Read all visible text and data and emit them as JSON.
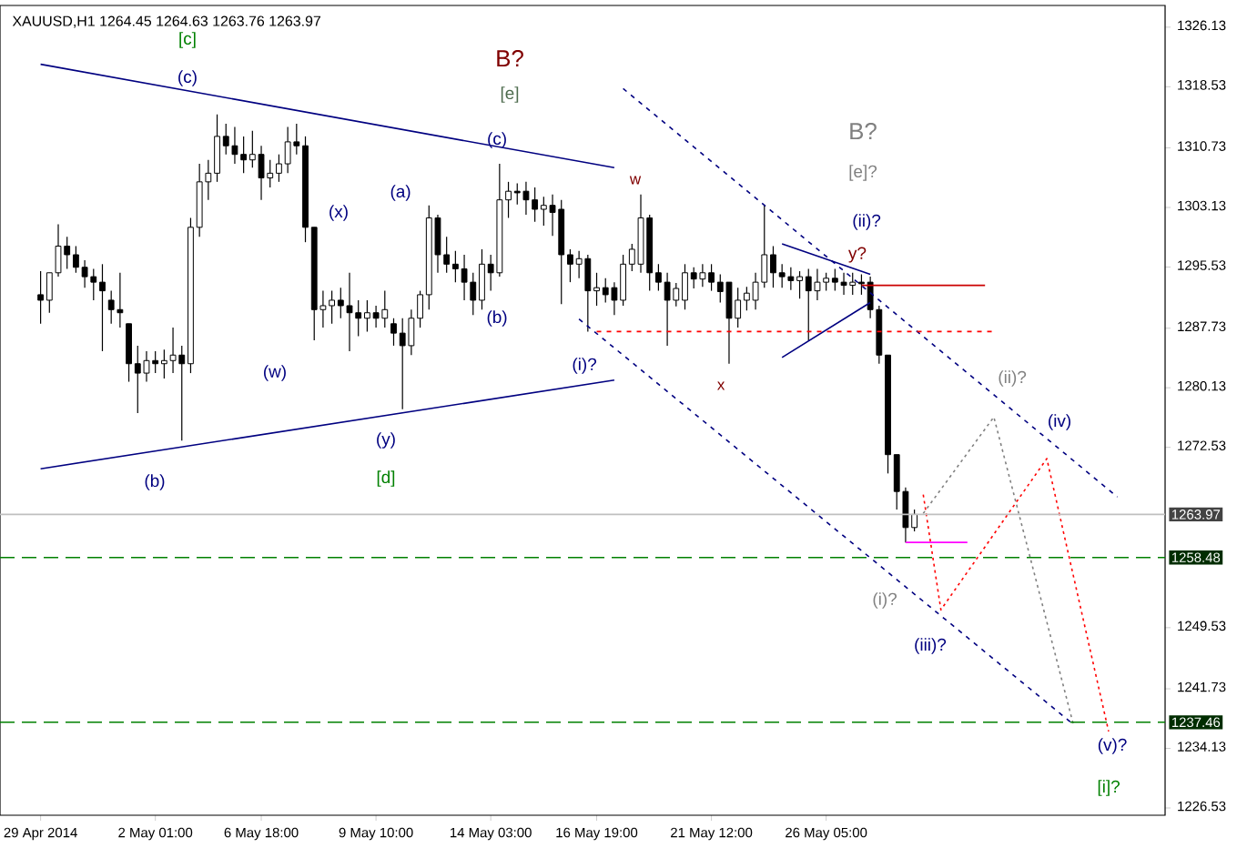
{
  "chart_data": {
    "type": "candlestick",
    "title": "XAUUSD,H1  1264.45 1264.63 1263.76 1263.97",
    "color": "#000000",
    "categories": [
      "29 Apr 2014",
      null,
      null,
      null,
      null,
      null,
      null,
      null,
      null,
      null,
      null,
      null,
      null,
      "2 May 01:00",
      null,
      null,
      null,
      null,
      null,
      null,
      null,
      null,
      null,
      null,
      null,
      "6 May 18:00",
      null,
      null,
      null,
      null,
      null,
      null,
      null,
      null,
      null,
      null,
      null,
      null,
      "9 May 10:00",
      null,
      null,
      null,
      null,
      null,
      null,
      null,
      null,
      null,
      null,
      null,
      null,
      "14 May 03:00",
      null,
      null,
      null,
      null,
      null,
      null,
      null,
      null,
      null,
      null,
      null,
      "16 May 19:00",
      null,
      null,
      null,
      null,
      null,
      null,
      null,
      null,
      null,
      null,
      null,
      null,
      "21 May 12:00",
      null,
      null,
      null,
      null,
      null,
      null,
      null,
      null,
      null,
      null,
      null,
      null,
      "26 May 05:00",
      null,
      null,
      null,
      null,
      null,
      null,
      null,
      null,
      null,
      null,
      null,
      null,
      null,
      null,
      null,
      null,
      null,
      null,
      null,
      null,
      null,
      null,
      null,
      null,
      null,
      null,
      null,
      null,
      null,
      null,
      null,
      null,
      null
    ],
    "ohlc": [
      [
        1292.0,
        1295.0,
        1288.3,
        1291.3
      ],
      [
        1291.3,
        1294.8,
        1289.7,
        1294.8
      ],
      [
        1294.8,
        1301.0,
        1294.3,
        1298.2
      ],
      [
        1298.2,
        1299.4,
        1295.3,
        1297.1
      ],
      [
        1297.1,
        1298.2,
        1294.8,
        1295.5
      ],
      [
        1295.5,
        1296.4,
        1292.9,
        1294.3
      ],
      [
        1294.3,
        1295.3,
        1291.3,
        1293.6
      ],
      [
        1293.6,
        1295.9,
        1284.8,
        1292.5
      ],
      [
        1291.3,
        1292.5,
        1288.3,
        1290.1
      ],
      [
        1290.1,
        1294.8,
        1287.8,
        1289.7
      ],
      [
        1288.3,
        1288.3,
        1280.9,
        1283.2
      ],
      [
        1283.2,
        1285.5,
        1276.9,
        1282.0
      ],
      [
        1282.0,
        1284.8,
        1280.9,
        1283.6
      ],
      [
        1283.6,
        1284.8,
        1282.0,
        1283.2
      ],
      [
        1283.2,
        1285.0,
        1281.3,
        1283.6
      ],
      [
        1283.6,
        1287.8,
        1282.0,
        1284.3
      ],
      [
        1284.3,
        1285.5,
        1273.4,
        1283.2
      ],
      [
        1283.2,
        1301.8,
        1282.0,
        1300.6
      ],
      [
        1300.6,
        1308.7,
        1299.4,
        1306.4
      ],
      [
        1306.4,
        1309.2,
        1304.1,
        1307.5
      ],
      [
        1307.5,
        1315.0,
        1306.4,
        1312.2
      ],
      [
        1312.2,
        1313.8,
        1309.9,
        1311.0
      ],
      [
        1311.0,
        1313.4,
        1308.7,
        1309.9
      ],
      [
        1309.9,
        1312.2,
        1307.5,
        1309.2
      ],
      [
        1309.2,
        1312.9,
        1308.2,
        1309.9
      ],
      [
        1309.9,
        1311.0,
        1304.1,
        1306.9
      ],
      [
        1306.9,
        1309.2,
        1305.7,
        1307.5
      ],
      [
        1307.5,
        1309.9,
        1306.4,
        1308.7
      ],
      [
        1308.7,
        1313.4,
        1307.5,
        1311.5
      ],
      [
        1311.5,
        1313.8,
        1309.9,
        1311.0
      ],
      [
        1311.0,
        1312.2,
        1298.7,
        1300.6
      ],
      [
        1300.6,
        1300.6,
        1286.2,
        1290.1
      ],
      [
        1290.1,
        1292.5,
        1287.8,
        1290.6
      ],
      [
        1290.6,
        1292.5,
        1288.3,
        1291.3
      ],
      [
        1291.3,
        1292.9,
        1289.0,
        1290.6
      ],
      [
        1290.6,
        1294.8,
        1284.8,
        1289.7
      ],
      [
        1289.7,
        1291.3,
        1286.7,
        1289.0
      ],
      [
        1289.0,
        1291.3,
        1287.3,
        1289.7
      ],
      [
        1289.7,
        1290.6,
        1287.8,
        1289.0
      ],
      [
        1289.0,
        1292.5,
        1287.8,
        1290.1
      ],
      [
        1288.3,
        1289.0,
        1285.5,
        1287.1
      ],
      [
        1287.1,
        1289.0,
        1277.4,
        1285.5
      ],
      [
        1285.5,
        1290.1,
        1284.3,
        1289.0
      ],
      [
        1289.0,
        1292.5,
        1287.8,
        1292.0
      ],
      [
        1292.0,
        1303.4,
        1290.1,
        1301.8
      ],
      [
        1301.8,
        1302.2,
        1294.8,
        1297.1
      ],
      [
        1297.1,
        1299.4,
        1294.8,
        1295.9
      ],
      [
        1295.9,
        1297.6,
        1293.6,
        1295.3
      ],
      [
        1295.3,
        1297.1,
        1291.3,
        1293.6
      ],
      [
        1293.6,
        1294.8,
        1289.4,
        1291.3
      ],
      [
        1291.3,
        1297.8,
        1290.1,
        1295.9
      ],
      [
        1295.9,
        1297.1,
        1292.5,
        1294.8
      ],
      [
        1294.8,
        1308.7,
        1294.3,
        1304.1
      ],
      [
        1304.1,
        1306.4,
        1301.8,
        1305.2
      ],
      [
        1305.2,
        1306.2,
        1303.5,
        1305.0
      ],
      [
        1305.2,
        1306.4,
        1302.2,
        1304.1
      ],
      [
        1304.1,
        1305.7,
        1301.3,
        1302.9
      ],
      [
        1302.9,
        1304.5,
        1300.8,
        1303.4
      ],
      [
        1303.4,
        1304.8,
        1299.5,
        1302.5
      ],
      [
        1302.9,
        1304.1,
        1290.8,
        1297.1
      ],
      [
        1297.1,
        1297.8,
        1293.6,
        1295.9
      ],
      [
        1295.9,
        1297.6,
        1294.1,
        1296.6
      ],
      [
        1296.6,
        1297.1,
        1287.3,
        1292.5
      ],
      [
        1292.5,
        1294.8,
        1290.6,
        1292.9
      ],
      [
        1292.9,
        1294.1,
        1291.0,
        1292.0
      ],
      [
        1292.9,
        1293.6,
        1289.4,
        1291.3
      ],
      [
        1291.3,
        1297.1,
        1290.6,
        1295.9
      ],
      [
        1295.9,
        1298.5,
        1295.0,
        1297.8
      ],
      [
        1295.9,
        1304.8,
        1294.8,
        1301.8
      ],
      [
        1301.8,
        1302.2,
        1292.5,
        1294.8
      ],
      [
        1294.8,
        1295.9,
        1292.5,
        1293.6
      ],
      [
        1293.6,
        1294.8,
        1285.5,
        1291.3
      ],
      [
        1291.3,
        1293.5,
        1290.5,
        1292.8
      ],
      [
        1291.3,
        1295.9,
        1290.1,
        1294.8
      ],
      [
        1294.8,
        1295.5,
        1292.8,
        1294.0
      ],
      [
        1294.0,
        1295.9,
        1293.0,
        1294.8
      ],
      [
        1294.8,
        1295.9,
        1292.5,
        1293.6
      ],
      [
        1293.6,
        1294.6,
        1291.0,
        1292.4
      ],
      [
        1293.6,
        1293.6,
        1283.2,
        1289.0
      ],
      [
        1289.0,
        1292.9,
        1287.8,
        1291.3
      ],
      [
        1291.3,
        1293.0,
        1290.0,
        1292.2
      ],
      [
        1291.3,
        1294.8,
        1290.1,
        1293.6
      ],
      [
        1293.6,
        1303.4,
        1292.9,
        1297.1
      ],
      [
        1297.1,
        1298.2,
        1292.9,
        1294.8
      ],
      [
        1294.8,
        1295.9,
        1292.9,
        1294.3
      ],
      [
        1294.3,
        1295.5,
        1292.6,
        1293.8
      ],
      [
        1293.8,
        1295.0,
        1291.5,
        1294.3
      ],
      [
        1294.3,
        1295.3,
        1286.2,
        1292.5
      ],
      [
        1292.5,
        1295.3,
        1291.3,
        1293.6
      ],
      [
        1293.6,
        1294.8,
        1292.5,
        1294.1
      ],
      [
        1294.1,
        1295.3,
        1292.5,
        1293.6
      ],
      [
        1293.6,
        1294.8,
        1292.0,
        1293.2
      ],
      [
        1293.2,
        1294.8,
        1292.0,
        1293.6
      ],
      [
        1293.6,
        1294.6,
        1292.0,
        1293.4
      ],
      [
        1293.6,
        1294.3,
        1289.0,
        1290.1
      ],
      [
        1290.1,
        1290.6,
        1283.2,
        1284.3
      ],
      [
        1284.3,
        1284.3,
        1269.2,
        1271.6
      ],
      [
        1271.6,
        1271.6,
        1264.6,
        1266.9
      ],
      [
        1266.9,
        1267.4,
        1260.4,
        1262.3
      ],
      [
        1262.3,
        1264.6,
        1261.8,
        1263.97
      ],
      null,
      null,
      null,
      null,
      null,
      null,
      null,
      null,
      null,
      null,
      null,
      null,
      null,
      null,
      null,
      null,
      null,
      null,
      null,
      null,
      null,
      null,
      null
    ],
    "series": [
      {
        "type": "line",
        "color": "#000080",
        "line_style": "solid",
        "values": [
          1321.4,
          null,
          null,
          null,
          null,
          null,
          null,
          null,
          null,
          null,
          null,
          null,
          null,
          null,
          null,
          null,
          null,
          null,
          null,
          null,
          null,
          null,
          null,
          null,
          null,
          null,
          null,
          null,
          null,
          null,
          null,
          null,
          null,
          null,
          null,
          null,
          null,
          null,
          null,
          null,
          null,
          null,
          null,
          null,
          null,
          null,
          null,
          null,
          null,
          null,
          null,
          null,
          null,
          null,
          null,
          null,
          null,
          null,
          null,
          null,
          null,
          null,
          null,
          null,
          null,
          1308.2,
          null,
          null,
          null,
          null,
          null,
          null,
          null,
          null,
          null,
          null,
          null,
          null,
          null,
          null,
          null,
          null,
          null,
          null,
          null,
          null,
          null,
          null,
          null,
          null,
          null,
          null,
          null,
          null,
          null,
          null,
          null,
          null,
          null,
          null,
          null,
          null,
          null,
          null,
          null,
          null,
          null,
          null,
          null,
          null,
          null,
          null,
          null,
          null,
          null,
          null,
          null,
          null,
          null,
          null,
          null,
          null,
          null
        ]
      },
      {
        "type": "line",
        "color": "#000080",
        "line_style": "solid",
        "values": [
          1269.8,
          null,
          null,
          null,
          null,
          null,
          null,
          null,
          null,
          null,
          null,
          null,
          null,
          null,
          null,
          null,
          null,
          null,
          null,
          null,
          null,
          null,
          null,
          null,
          null,
          null,
          null,
          null,
          null,
          null,
          null,
          null,
          null,
          null,
          null,
          null,
          null,
          null,
          null,
          null,
          null,
          null,
          null,
          null,
          null,
          null,
          null,
          null,
          null,
          null,
          null,
          null,
          null,
          null,
          null,
          null,
          null,
          null,
          null,
          null,
          null,
          null,
          null,
          null,
          null,
          1281.1,
          null,
          null,
          null,
          null,
          null,
          null,
          null,
          null,
          null,
          null,
          null,
          null,
          null,
          null,
          null,
          null,
          null,
          null,
          null,
          null,
          null,
          null,
          null,
          null,
          null,
          null,
          null,
          null,
          null,
          null,
          null,
          null,
          null,
          null,
          null,
          null,
          null,
          null,
          null,
          null,
          null,
          null,
          null,
          null,
          null,
          null,
          null,
          null,
          null,
          null,
          null,
          null,
          null,
          null,
          null,
          null,
          null
        ]
      },
      {
        "type": "line",
        "color": "#000080",
        "line_style": "solid",
        "values": [
          null,
          null,
          null,
          null,
          null,
          null,
          null,
          null,
          null,
          null,
          null,
          null,
          null,
          null,
          null,
          null,
          null,
          null,
          null,
          null,
          null,
          null,
          null,
          null,
          null,
          null,
          null,
          null,
          null,
          null,
          null,
          null,
          null,
          null,
          null,
          null,
          null,
          null,
          null,
          null,
          null,
          null,
          null,
          null,
          null,
          null,
          null,
          null,
          null,
          null,
          null,
          null,
          null,
          null,
          null,
          null,
          null,
          null,
          null,
          null,
          null,
          null,
          null,
          null,
          null,
          null,
          null,
          null,
          null,
          null,
          null,
          null,
          null,
          null,
          null,
          null,
          null,
          null,
          null,
          null,
          null,
          null,
          null,
          null,
          1298.5,
          null,
          null,
          null,
          null,
          null,
          null,
          null,
          null,
          null,
          1294.6,
          null,
          null,
          null,
          null,
          null,
          null,
          null,
          null,
          null,
          null,
          null,
          null,
          null,
          null,
          null,
          null,
          null,
          null,
          null,
          null,
          null,
          null,
          null,
          null,
          null,
          null,
          null,
          null
        ]
      },
      {
        "type": "line",
        "color": "#000080",
        "line_style": "solid",
        "values": [
          null,
          null,
          null,
          null,
          null,
          null,
          null,
          null,
          null,
          null,
          null,
          null,
          null,
          null,
          null,
          null,
          null,
          null,
          null,
          null,
          null,
          null,
          null,
          null,
          null,
          null,
          null,
          null,
          null,
          null,
          null,
          null,
          null,
          null,
          null,
          null,
          null,
          null,
          null,
          null,
          null,
          null,
          null,
          null,
          null,
          null,
          null,
          null,
          null,
          null,
          null,
          null,
          null,
          null,
          null,
          null,
          null,
          null,
          null,
          null,
          null,
          null,
          null,
          null,
          null,
          null,
          null,
          null,
          null,
          null,
          null,
          null,
          null,
          null,
          null,
          null,
          null,
          null,
          null,
          null,
          null,
          null,
          null,
          null,
          1284.0,
          null,
          null,
          null,
          null,
          null,
          null,
          null,
          null,
          null,
          1291.0,
          null,
          null,
          null,
          null,
          null,
          null,
          null,
          null,
          null,
          null,
          null,
          null,
          null,
          null,
          null,
          null,
          null,
          null,
          null,
          null,
          null,
          null,
          null,
          null,
          null,
          null,
          null,
          null
        ]
      },
      {
        "type": "line",
        "color": "#cc0000",
        "line_style": "solid",
        "values": [
          null,
          null,
          null,
          null,
          null,
          null,
          null,
          null,
          null,
          null,
          null,
          null,
          null,
          null,
          null,
          null,
          null,
          null,
          null,
          null,
          null,
          null,
          null,
          null,
          null,
          null,
          null,
          null,
          null,
          null,
          null,
          null,
          null,
          null,
          null,
          null,
          null,
          null,
          null,
          null,
          null,
          null,
          null,
          null,
          null,
          null,
          null,
          null,
          null,
          null,
          null,
          null,
          null,
          null,
          null,
          null,
          null,
          null,
          null,
          null,
          null,
          null,
          null,
          null,
          null,
          null,
          null,
          null,
          null,
          null,
          null,
          null,
          null,
          null,
          null,
          null,
          null,
          null,
          null,
          null,
          null,
          null,
          null,
          null,
          null,
          null,
          null,
          null,
          null,
          null,
          null,
          null,
          null,
          1293.2,
          null,
          null,
          null,
          null,
          null,
          null,
          null,
          null,
          null,
          null,
          null,
          null,
          null,
          1293.2,
          null,
          null,
          null,
          null,
          null,
          null,
          null,
          null,
          null,
          null,
          null,
          null,
          null,
          null,
          null
        ]
      },
      {
        "type": "line",
        "color": "#000080",
        "line_style": "dashed",
        "values": [
          null,
          null,
          null,
          null,
          null,
          null,
          null,
          null,
          null,
          null,
          null,
          null,
          null,
          null,
          null,
          null,
          null,
          null,
          null,
          null,
          null,
          null,
          null,
          null,
          null,
          null,
          null,
          null,
          null,
          null,
          null,
          null,
          null,
          null,
          null,
          null,
          null,
          null,
          null,
          null,
          null,
          null,
          null,
          null,
          null,
          null,
          null,
          null,
          null,
          null,
          null,
          null,
          null,
          null,
          null,
          null,
          null,
          null,
          null,
          null,
          null,
          null,
          null,
          null,
          null,
          null,
          1318.3,
          null,
          null,
          null,
          null,
          null,
          null,
          null,
          null,
          null,
          null,
          null,
          null,
          null,
          null,
          null,
          null,
          null,
          null,
          null,
          null,
          null,
          null,
          null,
          null,
          null,
          null,
          null,
          null,
          null,
          null,
          null,
          null,
          null,
          null,
          null,
          null,
          null,
          null,
          null,
          null,
          null,
          null,
          null,
          null,
          null,
          null,
          null,
          null,
          null,
          null,
          null,
          null,
          null,
          null,
          null,
          1266.2
        ]
      },
      {
        "type": "line",
        "color": "#000080",
        "line_style": "dashed",
        "values": [
          null,
          null,
          null,
          null,
          null,
          null,
          null,
          null,
          null,
          null,
          null,
          null,
          null,
          null,
          null,
          null,
          null,
          null,
          null,
          null,
          null,
          null,
          null,
          null,
          null,
          null,
          null,
          null,
          null,
          null,
          null,
          null,
          null,
          null,
          null,
          null,
          null,
          null,
          null,
          null,
          null,
          null,
          null,
          null,
          null,
          null,
          null,
          null,
          null,
          null,
          null,
          null,
          null,
          null,
          null,
          null,
          null,
          null,
          null,
          null,
          null,
          1288.9,
          null,
          null,
          null,
          null,
          null,
          null,
          null,
          null,
          null,
          null,
          null,
          null,
          null,
          null,
          null,
          null,
          null,
          null,
          null,
          null,
          null,
          null,
          null,
          null,
          null,
          null,
          null,
          null,
          null,
          null,
          null,
          null,
          null,
          null,
          null,
          null,
          null,
          null,
          null,
          null,
          null,
          null,
          null,
          null,
          null,
          null,
          null,
          null,
          null,
          null,
          null,
          null,
          null,
          null,
          null,
          1237.2,
          null,
          null,
          null,
          null,
          null
        ]
      },
      {
        "type": "line",
        "color": "#ff0000",
        "line_style": "dashed",
        "values": [
          null,
          null,
          null,
          null,
          null,
          null,
          null,
          null,
          null,
          null,
          null,
          null,
          null,
          null,
          null,
          null,
          null,
          null,
          null,
          null,
          null,
          null,
          null,
          null,
          null,
          null,
          null,
          null,
          null,
          null,
          null,
          null,
          null,
          null,
          null,
          null,
          null,
          null,
          null,
          null,
          null,
          null,
          null,
          null,
          null,
          null,
          null,
          null,
          null,
          null,
          null,
          null,
          null,
          null,
          null,
          null,
          null,
          null,
          null,
          null,
          null,
          null,
          null,
          1287.3,
          null,
          null,
          null,
          null,
          null,
          null,
          null,
          null,
          null,
          null,
          null,
          null,
          null,
          null,
          null,
          null,
          null,
          null,
          null,
          null,
          null,
          null,
          null,
          null,
          null,
          null,
          null,
          null,
          null,
          null,
          null,
          null,
          null,
          null,
          null,
          null,
          null,
          null,
          null,
          null,
          null,
          null,
          null,
          null,
          1287.3,
          null,
          null,
          null,
          null,
          null,
          null,
          null,
          null,
          null,
          null,
          null,
          null,
          null,
          null
        ]
      },
      {
        "type": "line",
        "color": "#ff00ff",
        "line_style": "solid",
        "values": [
          null,
          null,
          null,
          null,
          null,
          null,
          null,
          null,
          null,
          null,
          null,
          null,
          null,
          null,
          null,
          null,
          null,
          null,
          null,
          null,
          null,
          null,
          null,
          null,
          null,
          null,
          null,
          null,
          null,
          null,
          null,
          null,
          null,
          null,
          null,
          null,
          null,
          null,
          null,
          null,
          null,
          null,
          null,
          null,
          null,
          null,
          null,
          null,
          null,
          null,
          null,
          null,
          null,
          null,
          null,
          null,
          null,
          null,
          null,
          null,
          null,
          null,
          null,
          null,
          null,
          null,
          null,
          null,
          null,
          null,
          null,
          null,
          null,
          null,
          null,
          null,
          null,
          null,
          null,
          null,
          null,
          null,
          null,
          null,
          null,
          null,
          null,
          null,
          null,
          null,
          null,
          null,
          null,
          null,
          null,
          null,
          null,
          null,
          1260.4,
          null,
          null,
          null,
          null,
          null,
          null,
          1260.4,
          null,
          null,
          null,
          null,
          null,
          null,
          null,
          null,
          null,
          null,
          null,
          null,
          null,
          null,
          null,
          null,
          null
        ]
      },
      {
        "type": "line",
        "color": "#808080",
        "line_style": "dotted",
        "values": [
          null,
          null,
          null,
          null,
          null,
          null,
          null,
          null,
          null,
          null,
          null,
          null,
          null,
          null,
          null,
          null,
          null,
          null,
          null,
          null,
          null,
          null,
          null,
          null,
          null,
          null,
          null,
          null,
          null,
          null,
          null,
          null,
          null,
          null,
          null,
          null,
          null,
          null,
          null,
          null,
          null,
          null,
          null,
          null,
          null,
          null,
          null,
          null,
          null,
          null,
          null,
          null,
          null,
          null,
          null,
          null,
          null,
          null,
          null,
          null,
          null,
          null,
          null,
          null,
          null,
          null,
          null,
          null,
          null,
          null,
          null,
          null,
          null,
          null,
          null,
          null,
          null,
          null,
          null,
          null,
          null,
          null,
          null,
          null,
          null,
          null,
          null,
          null,
          null,
          null,
          null,
          null,
          null,
          null,
          null,
          null,
          null,
          null,
          null,
          null,
          1264.1,
          null,
          null,
          null,
          null,
          null,
          null,
          null,
          1276.4,
          null,
          null,
          null,
          null,
          null,
          null,
          null,
          null,
          1237.2,
          null,
          null,
          null,
          null,
          null
        ]
      },
      {
        "type": "line",
        "color": "#ff0000",
        "line_style": "dotted",
        "values": [
          null,
          null,
          null,
          null,
          null,
          null,
          null,
          null,
          null,
          null,
          null,
          null,
          null,
          null,
          null,
          null,
          null,
          null,
          null,
          null,
          null,
          null,
          null,
          null,
          null,
          null,
          null,
          null,
          null,
          null,
          null,
          null,
          null,
          null,
          null,
          null,
          null,
          null,
          null,
          null,
          null,
          null,
          null,
          null,
          null,
          null,
          null,
          null,
          null,
          null,
          null,
          null,
          null,
          null,
          null,
          null,
          null,
          null,
          null,
          null,
          null,
          null,
          null,
          null,
          null,
          null,
          null,
          null,
          null,
          null,
          null,
          null,
          null,
          null,
          null,
          null,
          null,
          null,
          null,
          null,
          null,
          null,
          null,
          null,
          null,
          null,
          null,
          null,
          null,
          null,
          null,
          null,
          null,
          null,
          null,
          null,
          null,
          null,
          null,
          null,
          1266.5,
          null,
          1251.8,
          null,
          null,
          null,
          null,
          null,
          null,
          null,
          null,
          null,
          null,
          null,
          1271.1,
          null,
          null,
          null,
          null,
          null,
          null,
          1236.3,
          null
        ]
      }
    ],
    "ref_lines": [
      {
        "axis": "y",
        "value": 1263.97,
        "label": "1263.97",
        "color": "#c0c0c0",
        "line_style": "solid"
      },
      {
        "axis": "y",
        "value": 1258.48,
        "label": "1258.48",
        "color": "#008000",
        "line_style": "dashed"
      },
      {
        "axis": "y",
        "value": 1237.46,
        "label": "1237.46",
        "color": "#008000",
        "line_style": "dashed"
      }
    ],
    "annotations": [
      "[c]",
      "(c)",
      "B?",
      "[e]",
      "(c)",
      "(a)",
      "(x)",
      "(w)",
      "(b)",
      "(y)",
      "[d]",
      "(b)",
      "(i)?",
      "w",
      "x",
      "y?",
      "(ii)?",
      "B?",
      "[e]?",
      "(ii)?",
      "(iv)",
      "(i)?",
      "(iii)?",
      "(v)?",
      "[i]?"
    ],
    "ylim": [
      1225.6,
      1328.9
    ],
    "yticks": [
      1226.53,
      1234.13,
      1241.73,
      1249.53,
      1272.53,
      1280.13,
      1287.73,
      1295.53,
      1303.13,
      1310.73,
      1318.53,
      1326.13
    ]
  }
}
